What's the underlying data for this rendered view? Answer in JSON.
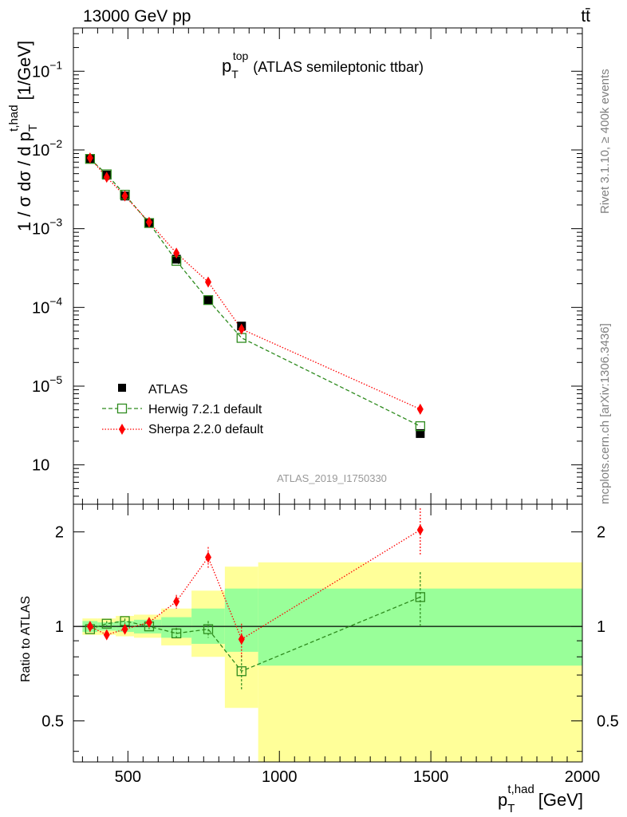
{
  "header": {
    "left": "13000 GeV pp",
    "right": "tt̄"
  },
  "title": {
    "main": "p",
    "sub": "T",
    "sup": "top",
    "rest": "(ATLAS semileptonic ttbar)"
  },
  "side_labels": {
    "rivet": "Rivet 3.1.10, ≥ 400k events",
    "mcplots": "mcplots.cern.ch [arXiv:1306.3436]"
  },
  "watermark": "ATLAS_2019_I1750330",
  "axis_labels": {
    "y_main": "1 / σ dσ / d p",
    "y_main_sub": "T",
    "y_main_sup": "t,had",
    "y_main_unit": "[1/GeV]",
    "y_ratio": "Ratio to ATLAS",
    "x_main": "p",
    "x_sub": "T",
    "x_sup": "t,had",
    "x_unit": "[GeV]"
  },
  "legend": [
    {
      "label": "ATLAS"
    },
    {
      "label": "Herwig 7.2.1 default"
    },
    {
      "label": "Sherpa 2.2.0 default"
    }
  ],
  "colors": {
    "atlas": "#000000",
    "herwig": "#2e8b1e",
    "sherpa": "#ff0000",
    "band_green": "#99ff99",
    "band_yellow": "#ffff99"
  },
  "chart_data": [
    {
      "type": "scatter",
      "x_scale": "linear",
      "y_scale": "log",
      "xlim": [
        320,
        2000
      ],
      "ylim_log10": [
        -6.5,
        -0.45
      ],
      "y_ticks": [
        {
          "exp": -6,
          "label": "10"
        },
        {
          "exp": -5,
          "label": "10",
          "sup": "−5"
        },
        {
          "exp": -4,
          "label": "10",
          "sup": "−4"
        },
        {
          "exp": -3,
          "label": "10",
          "sup": "−3"
        },
        {
          "exp": -2,
          "label": "10",
          "sup": "−2"
        },
        {
          "exp": -1,
          "label": "10",
          "sup": "−1"
        }
      ],
      "x": [
        375,
        430,
        490,
        570,
        660,
        765,
        875,
        1465
      ],
      "series": [
        {
          "name": "ATLAS",
          "marker": "square-filled",
          "values": [
            0.0078,
            0.0048,
            0.0026,
            0.00118,
            0.00041,
            0.000125,
            5.8e-05,
            2.5e-06
          ]
        },
        {
          "name": "Herwig 7.2.1 default",
          "marker": "square-open",
          "line": "dashed",
          "values": [
            0.0077,
            0.0049,
            0.0027,
            0.00118,
            0.00039,
            0.000124,
            4.1e-05,
            3.1e-06
          ]
        },
        {
          "name": "Sherpa 2.2.0 default",
          "marker": "diamond",
          "line": "dotted",
          "values": [
            0.0079,
            0.0045,
            0.0026,
            0.00121,
            0.00049,
            0.00021,
            5.3e-05,
            5.1e-06
          ]
        }
      ]
    },
    {
      "type": "scatter",
      "x_scale": "linear",
      "y_scale": "log",
      "xlim": [
        320,
        2000
      ],
      "ylim": [
        0.37,
        2.45
      ],
      "y_ticks": [
        0.5,
        1,
        2
      ],
      "y_tick_labels": [
        "0.5",
        "1",
        "2"
      ],
      "x_ticks": [
        500,
        1000,
        1500,
        2000
      ],
      "x_tick_labels": [
        "500",
        "1000",
        "1500",
        "2000"
      ],
      "reference": 1,
      "bins": [
        [
          350,
          400
        ],
        [
          400,
          460
        ],
        [
          460,
          520
        ],
        [
          520,
          610
        ],
        [
          610,
          710
        ],
        [
          710,
          820
        ],
        [
          820,
          930
        ],
        [
          930,
          2000
        ]
      ],
      "band_green": [
        [
          0.96,
          1.04
        ],
        [
          0.97,
          1.03
        ],
        [
          0.96,
          1.04
        ],
        [
          0.95,
          1.05
        ],
        [
          0.92,
          1.07
        ],
        [
          0.88,
          1.14
        ],
        [
          0.83,
          1.32
        ],
        [
          0.75,
          1.32
        ]
      ],
      "band_yellow": [
        [
          0.94,
          1.06
        ],
        [
          0.94,
          1.06
        ],
        [
          0.93,
          1.08
        ],
        [
          0.92,
          1.09
        ],
        [
          0.87,
          1.14
        ],
        [
          0.8,
          1.3
        ],
        [
          0.55,
          1.55
        ],
        [
          0.37,
          1.6
        ]
      ],
      "x": [
        375,
        430,
        490,
        570,
        660,
        765,
        875,
        1465
      ],
      "series": [
        {
          "name": "Herwig 7.2.1 default",
          "values": [
            0.98,
            1.02,
            1.04,
            1.0,
            0.95,
            0.98,
            0.72,
            1.24
          ],
          "err": [
            0.02,
            0.02,
            0.02,
            0.02,
            0.04,
            0.06,
            0.09,
            0.25
          ]
        },
        {
          "name": "Sherpa 2.2.0 default",
          "values": [
            1.0,
            0.94,
            0.98,
            1.03,
            1.2,
            1.66,
            0.91,
            2.03
          ],
          "err": [
            0.02,
            0.02,
            0.02,
            0.03,
            0.06,
            0.13,
            0.11,
            0.35
          ]
        }
      ]
    }
  ]
}
